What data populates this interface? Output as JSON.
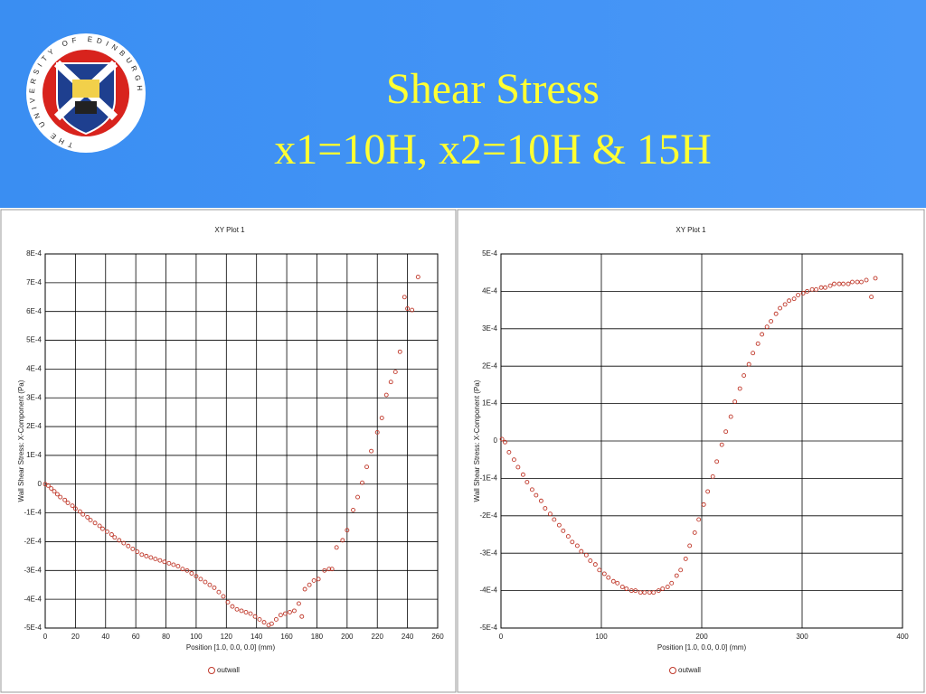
{
  "header": {
    "logo_text": "THE UNIVERSITY OF EDINBURGH",
    "title": "Shear Stress",
    "subtitle": "x1=10H, x2=10H & 15H"
  },
  "chart_data": [
    {
      "type": "scatter",
      "title": "XY Plot 1",
      "x_label": "Position [1.0, 0.0, 0.0] (mm)",
      "y_label": "Wall Shear Stress: X-Component (Pa)",
      "x": [
        0,
        2,
        4,
        6,
        8,
        10,
        13,
        15,
        18,
        20,
        23,
        25,
        28,
        30,
        33,
        36,
        38,
        41,
        44,
        46,
        49,
        52,
        55,
        58,
        61,
        64,
        67,
        70,
        73,
        76,
        79,
        82,
        85,
        88,
        91,
        94,
        97,
        100,
        103,
        106,
        109,
        112,
        115,
        118,
        121,
        124,
        127,
        130,
        133,
        136,
        139,
        142,
        145,
        148,
        150,
        153,
        156,
        159,
        162,
        165,
        168,
        170,
        172,
        175,
        178,
        181,
        185,
        188,
        190,
        193,
        197,
        200,
        204,
        207,
        210,
        213,
        216,
        220,
        223,
        226,
        229,
        232,
        235,
        238,
        240,
        243,
        247
      ],
      "series": [
        {
          "name": "outwall",
          "color": "#c0392b",
          "values": [
            0,
            -5e-06,
            -1.5e-05,
            -2.5e-05,
            -3.5e-05,
            -4.5e-05,
            -5.5e-05,
            -6.5e-05,
            -7.5e-05,
            -8.5e-05,
            -9.5e-05,
            -0.000105,
            -0.000115,
            -0.000125,
            -0.000135,
            -0.000145,
            -0.000155,
            -0.000165,
            -0.000175,
            -0.000185,
            -0.000195,
            -0.000205,
            -0.000215,
            -0.000225,
            -0.000235,
            -0.000245,
            -0.00025,
            -0.000255,
            -0.00026,
            -0.000265,
            -0.00027,
            -0.000275,
            -0.00028,
            -0.000285,
            -0.000295,
            -0.0003,
            -0.00031,
            -0.00032,
            -0.00033,
            -0.00034,
            -0.00035,
            -0.00036,
            -0.000375,
            -0.00039,
            -0.00041,
            -0.000425,
            -0.000435,
            -0.00044,
            -0.000445,
            -0.00045,
            -0.00046,
            -0.00047,
            -0.00048,
            -0.00049,
            -0.000485,
            -0.00047,
            -0.000455,
            -0.00045,
            -0.000445,
            -0.00044,
            -0.000415,
            -0.00046,
            -0.000365,
            -0.00035,
            -0.000335,
            -0.00033,
            -0.0003,
            -0.000295,
            -0.000295,
            -0.00022,
            -0.000195,
            -0.00016,
            -9e-05,
            -4.5e-05,
            5e-06,
            6e-05,
            0.000115,
            0.00018,
            0.00023,
            0.00031,
            0.000355,
            0.00039,
            0.00046,
            0.00065,
            0.00061,
            0.000605,
            0.00072
          ]
        }
      ],
      "xlim": [
        0,
        260
      ],
      "xticks": [
        0,
        20,
        40,
        60,
        80,
        100,
        120,
        140,
        160,
        180,
        200,
        220,
        240,
        260
      ],
      "ylim": [
        -0.0005,
        0.0008
      ],
      "yticks": [
        {
          "value": 0.0008,
          "label": "8E-4"
        },
        {
          "value": 0.0007,
          "label": "7E-4"
        },
        {
          "value": 0.0006,
          "label": "6E-4"
        },
        {
          "value": 0.0005,
          "label": "5E-4"
        },
        {
          "value": 0.0004,
          "label": "4E-4"
        },
        {
          "value": 0.0003,
          "label": "3E-4"
        },
        {
          "value": 0.0002,
          "label": "2E-4"
        },
        {
          "value": 0.0001,
          "label": "1E-4"
        },
        0,
        {
          "value": -0.0001,
          "label": "-1E-4"
        },
        {
          "value": -0.0002,
          "label": "-2E-4"
        },
        {
          "value": -0.0003,
          "label": "-3E-4"
        },
        {
          "value": -0.0004,
          "label": "-4E-4"
        },
        {
          "value": -0.0005,
          "label": "-5E-4"
        }
      ],
      "grid": true,
      "legend": "bottom"
    },
    {
      "type": "scatter",
      "title": "XY Plot 1",
      "x_label": "Position [1.0, 0.0, 0.0] (mm)",
      "y_label": "Wall Shear Stress: X-Component (Pa)",
      "x": [
        1,
        4,
        8,
        13,
        17,
        22,
        26,
        31,
        35,
        40,
        44,
        49,
        53,
        58,
        62,
        67,
        71,
        76,
        80,
        85,
        89,
        94,
        98,
        103,
        107,
        112,
        116,
        121,
        125,
        130,
        134,
        139,
        143,
        148,
        152,
        157,
        161,
        166,
        170,
        175,
        179,
        184,
        188,
        193,
        197,
        202,
        206,
        211,
        215,
        220,
        224,
        229,
        233,
        238,
        242,
        247,
        251,
        256,
        260,
        265,
        269,
        274,
        278,
        283,
        287,
        292,
        296,
        301,
        305,
        310,
        314,
        319,
        323,
        328,
        332,
        337,
        341,
        346,
        350,
        355,
        359,
        364,
        369,
        373
      ],
      "series": [
        {
          "name": "outwall",
          "color": "#c0392b",
          "values": [
            5e-06,
            -3e-06,
            -3e-05,
            -5e-05,
            -7e-05,
            -9e-05,
            -0.00011,
            -0.00013,
            -0.000145,
            -0.00016,
            -0.00018,
            -0.000195,
            -0.00021,
            -0.000225,
            -0.00024,
            -0.000255,
            -0.00027,
            -0.00028,
            -0.000295,
            -0.000305,
            -0.00032,
            -0.00033,
            -0.000345,
            -0.000355,
            -0.000365,
            -0.000375,
            -0.00038,
            -0.00039,
            -0.000395,
            -0.0004,
            -0.0004,
            -0.000405,
            -0.000405,
            -0.000405,
            -0.000405,
            -0.0004,
            -0.000395,
            -0.00039,
            -0.00038,
            -0.00036,
            -0.000345,
            -0.000315,
            -0.00028,
            -0.000245,
            -0.00021,
            -0.00017,
            -0.000135,
            -9.5e-05,
            -5.5e-05,
            -1e-05,
            2.5e-05,
            6.5e-05,
            0.000105,
            0.00014,
            0.000175,
            0.000205,
            0.000235,
            0.00026,
            0.000285,
            0.000305,
            0.00032,
            0.00034,
            0.000355,
            0.000365,
            0.000375,
            0.00038,
            0.00039,
            0.000395,
            0.0004,
            0.000405,
            0.000405,
            0.00041,
            0.00041,
            0.000415,
            0.00042,
            0.00042,
            0.00042,
            0.00042,
            0.000425,
            0.000425,
            0.000425,
            0.00043,
            0.000385,
            0.000435
          ]
        }
      ],
      "xlim": [
        0,
        400
      ],
      "xticks": [
        0,
        100,
        200,
        300,
        400
      ],
      "ylim": [
        -0.0005,
        0.0005
      ],
      "yticks": [
        {
          "value": 0.0005,
          "label": "5E-4"
        },
        {
          "value": 0.0004,
          "label": "4E-4"
        },
        {
          "value": 0.0003,
          "label": "3E-4"
        },
        {
          "value": 0.0002,
          "label": "2E-4"
        },
        {
          "value": 0.0001,
          "label": "1E-4"
        },
        0,
        {
          "value": -0.0001,
          "label": "-1E-4"
        },
        {
          "value": -0.0002,
          "label": "-2E-4"
        },
        {
          "value": -0.0003,
          "label": "-3E-4"
        },
        {
          "value": -0.0004,
          "label": "-4E-4"
        },
        {
          "value": -0.0005,
          "label": "-5E-4"
        }
      ],
      "grid": true,
      "legend": "bottom"
    }
  ]
}
